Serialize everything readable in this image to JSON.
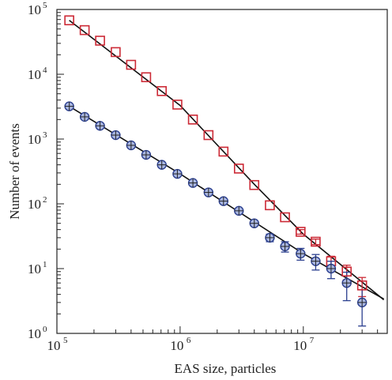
{
  "chart_data": {
    "type": "scatter",
    "title": "",
    "xlabel": "EAS size, particles",
    "ylabel": "Number of events",
    "x_scale": "log",
    "y_scale": "log",
    "xlim": [
      100000,
      48000000
    ],
    "ylim": [
      1,
      100000
    ],
    "grid": false,
    "x_ticks": [
      {
        "base": "10",
        "exp": "5",
        "value": 100000
      },
      {
        "base": "10",
        "exp": "6",
        "value": 1000000
      },
      {
        "base": "10",
        "exp": "7",
        "value": 10000000
      }
    ],
    "y_ticks": [
      {
        "base": "10",
        "exp": "0",
        "value": 1
      },
      {
        "base": "10",
        "exp": "1",
        "value": 10
      },
      {
        "base": "10",
        "exp": "2",
        "value": 100
      },
      {
        "base": "10",
        "exp": "3",
        "value": 1000
      },
      {
        "base": "10",
        "exp": "4",
        "value": 10000
      },
      {
        "base": "10",
        "exp": "5",
        "value": 100000
      }
    ],
    "series": [
      {
        "marker": "square",
        "color": "#cc2a36",
        "points": [
          [
            126000,
            68000
          ],
          [
            168000,
            48000
          ],
          [
            224000,
            33000
          ],
          [
            300000,
            22000
          ],
          [
            400000,
            14000
          ],
          [
            530000,
            9000
          ],
          [
            710000,
            5500
          ],
          [
            950000,
            3400
          ],
          [
            1270000,
            2000
          ],
          [
            1700000,
            1150
          ],
          [
            2250000,
            640
          ],
          [
            3000000,
            350
          ],
          [
            4000000,
            195
          ],
          [
            5350000,
            95
          ],
          [
            7100000,
            62
          ],
          [
            9500000,
            37
          ],
          [
            12600000,
            26
          ],
          [
            16800000,
            13
          ],
          [
            22500000,
            9
          ],
          [
            30000000,
            5.5
          ]
        ],
        "errors": [
          [
            126000,
            0
          ],
          [
            168000,
            0
          ],
          [
            224000,
            0
          ],
          [
            300000,
            0
          ],
          [
            400000,
            0
          ],
          [
            530000,
            0
          ],
          [
            710000,
            0
          ],
          [
            950000,
            0
          ],
          [
            1270000,
            0
          ],
          [
            1700000,
            0
          ],
          [
            2250000,
            0
          ],
          [
            3000000,
            0
          ],
          [
            4000000,
            0
          ],
          [
            5350000,
            0
          ],
          [
            7100000,
            0
          ],
          [
            9500000,
            3
          ],
          [
            12600000,
            2.5
          ],
          [
            16800000,
            2.5
          ],
          [
            22500000,
            2.3
          ],
          [
            30000000,
            1.8
          ]
        ]
      },
      {
        "marker": "circle",
        "color": "#2b3f8f",
        "points": [
          [
            126000,
            3200
          ],
          [
            168000,
            2200
          ],
          [
            224000,
            1600
          ],
          [
            300000,
            1150
          ],
          [
            400000,
            800
          ],
          [
            530000,
            570
          ],
          [
            710000,
            400
          ],
          [
            950000,
            290
          ],
          [
            1270000,
            210
          ],
          [
            1700000,
            150
          ],
          [
            2250000,
            110
          ],
          [
            3000000,
            78
          ],
          [
            4000000,
            50
          ],
          [
            5350000,
            30
          ],
          [
            7100000,
            22
          ],
          [
            9500000,
            17
          ],
          [
            12600000,
            13
          ],
          [
            16800000,
            10
          ],
          [
            22500000,
            6
          ],
          [
            30000000,
            3
          ]
        ],
        "errors": [
          [
            126000,
            0
          ],
          [
            168000,
            0
          ],
          [
            224000,
            0
          ],
          [
            300000,
            0
          ],
          [
            400000,
            0
          ],
          [
            530000,
            0
          ],
          [
            710000,
            0
          ],
          [
            950000,
            0
          ],
          [
            1270000,
            0
          ],
          [
            1700000,
            0
          ],
          [
            2250000,
            0
          ],
          [
            3000000,
            0
          ],
          [
            4000000,
            4
          ],
          [
            5350000,
            4
          ],
          [
            7100000,
            4
          ],
          [
            9500000,
            3.5
          ],
          [
            12600000,
            3.5
          ],
          [
            16800000,
            3
          ],
          [
            22500000,
            2.8
          ],
          [
            30000000,
            1.7
          ]
        ]
      }
    ],
    "fit_lines": [
      {
        "color": "#111111",
        "points": [
          [
            126000,
            68000
          ],
          [
            1000000,
            3300
          ],
          [
            4000000,
            200
          ],
          [
            10000000,
            34
          ],
          [
            45000000,
            3.3
          ]
        ]
      },
      {
        "color": "#111111",
        "points": [
          [
            126000,
            3200
          ],
          [
            1000000,
            290
          ],
          [
            10000000,
            17
          ],
          [
            45000000,
            3.4
          ]
        ]
      }
    ]
  }
}
